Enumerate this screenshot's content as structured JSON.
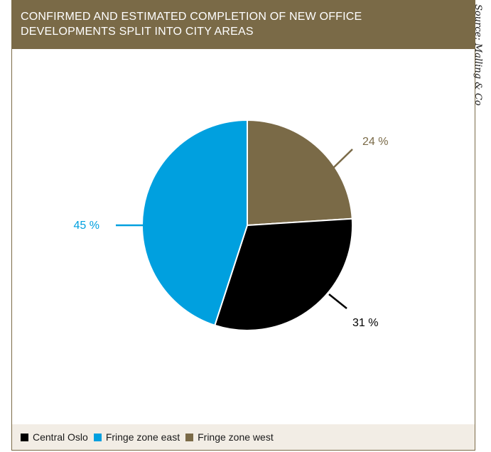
{
  "title_lines": [
    "CONFIRMED AND ESTIMATED COMPLETION OF NEW OFFICE",
    "DEVELOPMENTS SPLIT INTO CITY AREAS"
  ],
  "source": "Source: Malling & Co",
  "colors": {
    "header_bg": "#7a6a47",
    "legend_bg": "#f2ede5",
    "central_oslo": "#000000",
    "fringe_east": "#00a0df",
    "fringe_west": "#7a6a47"
  },
  "chart_data": {
    "type": "pie",
    "title": "CONFIRMED AND ESTIMATED COMPLETION OF NEW OFFICE DEVELOPMENTS SPLIT INTO CITY AREAS",
    "slices": [
      {
        "name": "Fringe zone west",
        "value": 24,
        "label": "24 %",
        "color": "#7a6a47"
      },
      {
        "name": "Central Oslo",
        "value": 31,
        "label": "31 %",
        "color": "#000000"
      },
      {
        "name": "Fringe zone east",
        "value": 45,
        "label": "45 %",
        "color": "#00a0df"
      }
    ],
    "legend": [
      "Central Oslo",
      "Fringe zone east",
      "Fringe zone west"
    ],
    "legend_placement": "bottom"
  }
}
